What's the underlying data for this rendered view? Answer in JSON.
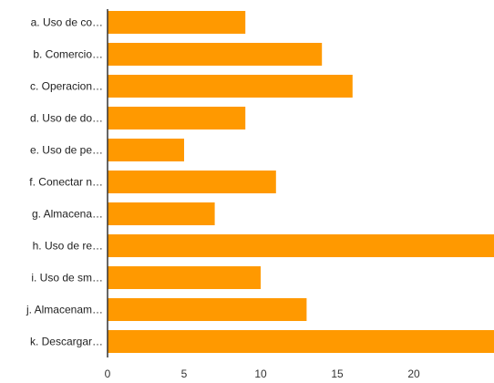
{
  "chart_data": {
    "type": "bar",
    "orientation": "horizontal",
    "categories": [
      "a. Uso de co…",
      "b. Comercio…",
      "c. Operacion…",
      "d. Uso de do…",
      "e. Uso de pe…",
      "f. Conectar n…",
      "g. Almacena…",
      "h. Uso de re…",
      "i. Uso de sm…",
      "j. Almacenam…",
      "k. Descargar…"
    ],
    "values": [
      9,
      14,
      16,
      9,
      5,
      11,
      7,
      26,
      10,
      13,
      26
    ],
    "xlim": [
      0,
      25
    ],
    "xticks": [
      "0",
      "5",
      "10",
      "15",
      "20"
    ],
    "title": "",
    "xlabel": "",
    "ylabel": "",
    "grid": false,
    "bar_color": "#ff9900",
    "axis_color": "#333333"
  }
}
